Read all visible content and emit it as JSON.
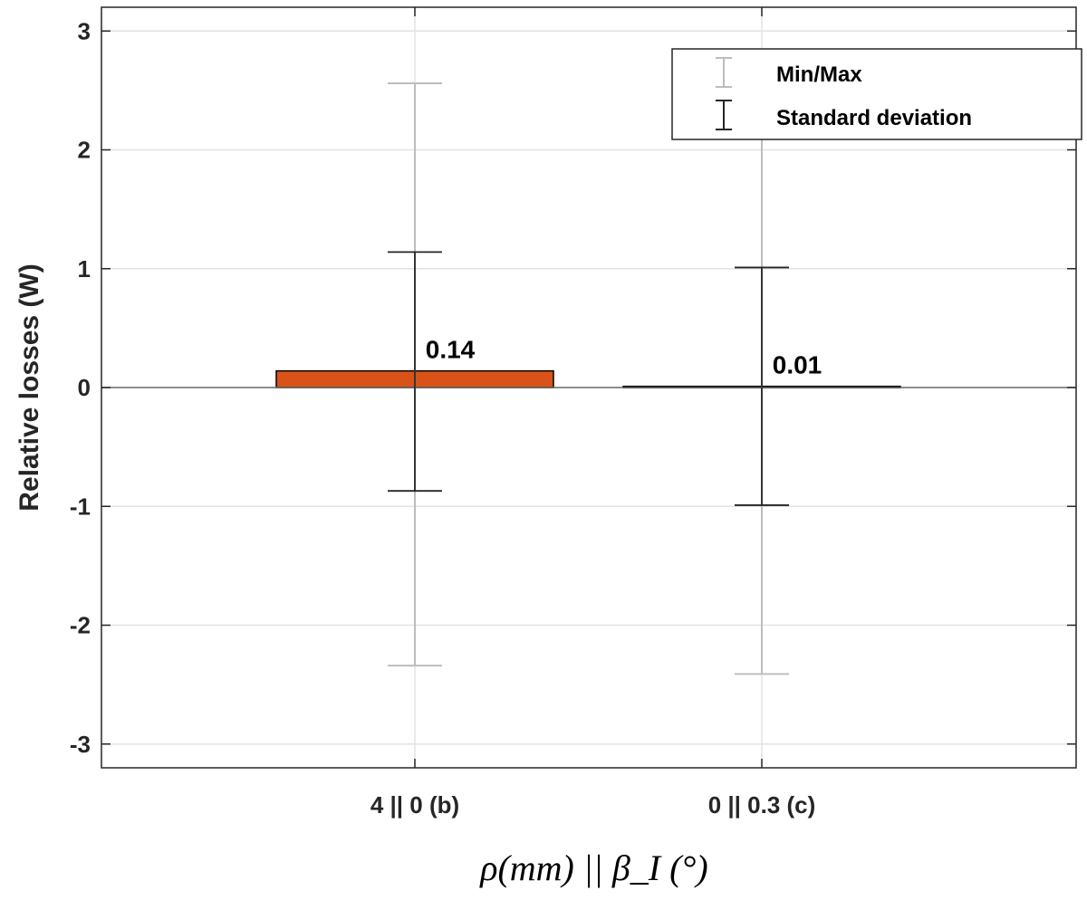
{
  "chart_data": {
    "type": "bar",
    "categories": [
      "4 || 0 (b)",
      "0 || 0.3 (c)"
    ],
    "values": [
      0.14,
      0.01
    ],
    "value_labels": [
      "0.14",
      "0.01"
    ],
    "std_dev": [
      {
        "low": -0.87,
        "high": 1.14
      },
      {
        "low": -0.99,
        "high": 1.01
      }
    ],
    "min_max": [
      {
        "min": -2.34,
        "max": 2.56
      },
      {
        "min": -2.41,
        "max": 2.82
      }
    ],
    "ylabel": "Relative losses (W)",
    "xlabel": "ρ(mm) || β_I (°)",
    "ylim": [
      -3.2,
      3.2
    ],
    "yticks": [
      3,
      2,
      1,
      0,
      -1,
      -2,
      -3
    ],
    "ytick_labels": [
      "3",
      "2",
      "1",
      "0",
      "-1",
      "-2",
      "-3"
    ],
    "grid": true,
    "legend": {
      "placement": "top-right",
      "entries": [
        "Min/Max",
        "Standard deviation"
      ]
    },
    "colors": {
      "bar": "#d95319",
      "minmax": "#bdbdbd",
      "std": "#262626",
      "grid": "#e3e3e3",
      "axis": "#262626"
    }
  }
}
